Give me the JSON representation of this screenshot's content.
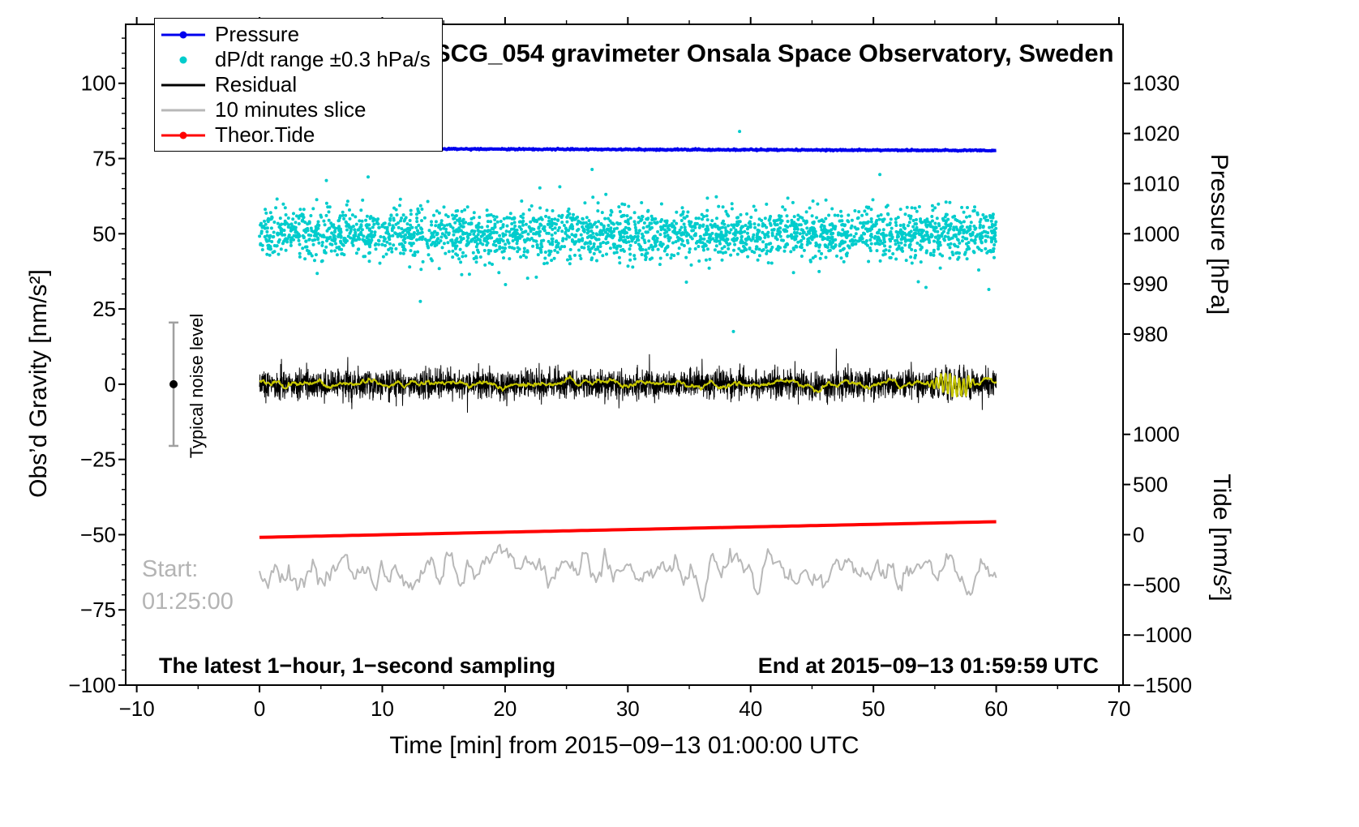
{
  "chart_data": {
    "type": "line+scatter",
    "title": "SCG_054 gravimeter Onsala Space Observatory, Sweden",
    "xlabel": "Time [min] from 2015−09−13 01:00:00 UTC",
    "ylabel_left": "Obs’d Gravity [nm/s²]",
    "ylabel_pressure": "Pressure [hPa]",
    "ylabel_tide": "Tide [nm/s²]",
    "x_range": [
      -10,
      70
    ],
    "y_left_range": [
      -100,
      100
    ],
    "x_ticks": [
      -10,
      0,
      10,
      20,
      30,
      40,
      50,
      60,
      70
    ],
    "x_tick_labels": [
      "−10",
      "0",
      "10",
      "20",
      "30",
      "40",
      "50",
      "60",
      "70"
    ],
    "x_minor_step": 5,
    "y_left_ticks": [
      -100,
      -75,
      -50,
      -25,
      0,
      25,
      50,
      75,
      100
    ],
    "y_left_tick_labels": [
      "−100",
      "−75",
      "−50",
      "−25",
      "0",
      "25",
      "50",
      "75",
      "100"
    ],
    "y_left_minor_step": 5,
    "pressure_ticks": [
      980,
      990,
      1000,
      1010,
      1020,
      1030
    ],
    "pressure_tick_labels": [
      "980",
      "990",
      "1000",
      "1010",
      "1020",
      "1030"
    ],
    "pressure_scale": {
      "gravity_at_1030": 100,
      "gravity_per_hpa": 1.666667
    },
    "tide_ticks": [
      -1500,
      -1000,
      -500,
      0,
      500,
      1000
    ],
    "tide_tick_labels": [
      "−1500",
      "−1000",
      "−500",
      "0",
      "500",
      "1000"
    ],
    "tide_scale": {
      "gravity_at_0": -50,
      "gravity_per_unit": 0.033333
    },
    "series": [
      {
        "name": "dP/dt range ±0.3 hPa/s",
        "type": "scatter",
        "color": "#00cccc",
        "n": 2600,
        "x_start": 0,
        "x_end": 60,
        "mean": 50,
        "std": 4.2,
        "tail_frac": 0.05,
        "tail_std": 8,
        "clip_low": 13,
        "clip_high": 85,
        "dot_radius": 2,
        "extra_points": [
          [
            39.1,
            84
          ],
          [
            38.6,
            17.5
          ],
          [
            13.1,
            27.5
          ],
          [
            59.4,
            31.5
          ]
        ]
      },
      {
        "name": "Pressure",
        "type": "line",
        "color": "#0000ee",
        "width": 4,
        "n": 900,
        "x_start": 0,
        "x_end": 60,
        "hpa_start": 1017.0,
        "hpa_end": 1016.6,
        "noise": 0.12
      },
      {
        "name": "Residual",
        "type": "noisy-line",
        "color": "#000000",
        "width": 1,
        "n": 3600,
        "x_start": 0,
        "x_end": 60,
        "mean": 0,
        "std": 2.3,
        "spike_frac": 0.015,
        "spike_amp": 5,
        "burst": {
          "x_from": 54.3,
          "x_to": 58.6,
          "amp": 2.5,
          "period": 0.37
        }
      },
      {
        "name": "Residual lowpass",
        "type": "smooth-line",
        "color": "#c8c800",
        "width": 2,
        "n": 1440,
        "x_start": 0,
        "x_end": 60,
        "mean": 0,
        "std": 0.8,
        "smooth": 8,
        "burst": {
          "x_from": 54.3,
          "x_to": 58.6,
          "amp": 3.6,
          "period": 0.37
        }
      },
      {
        "name": "Theor.Tide",
        "type": "line",
        "color": "#ff0000",
        "width": 4,
        "n": 120,
        "x_start": 0,
        "x_end": 60,
        "tide_start": -27,
        "tide_end": 129,
        "noise": 0
      },
      {
        "name": "10 minutes slice",
        "type": "smooth-line",
        "color": "#b8b8b8",
        "width": 2,
        "n": 430,
        "x_start": 0,
        "x_end": 60,
        "mean": -62,
        "std": 3.1,
        "smooth": 2
      }
    ],
    "noise_marker": {
      "x": -7,
      "g_center": 0,
      "half_range": 20.5,
      "cap_half_width": 6,
      "label": "Typical noise level",
      "bar_color": "#a0a0a0",
      "dot_color": "#000000"
    },
    "legend": {
      "items": [
        {
          "label": "Pressure",
          "color": "#0000ee",
          "marker": "line-dot"
        },
        {
          "label": "dP/dt range ±0.3 hPa/s",
          "color": "#00cccc",
          "marker": "dot"
        },
        {
          "label": "Residual",
          "color": "#000000",
          "marker": "line"
        },
        {
          "label": "10 minutes slice",
          "color": "#b8b8b8",
          "marker": "line"
        },
        {
          "label": "Theor.Tide",
          "color": "#ff0000",
          "marker": "line-dot"
        }
      ]
    },
    "annotations": {
      "start_label": "Start:",
      "start_time": "01:25:00",
      "bottom_left": "The latest 1−hour, 1−second sampling",
      "bottom_right": "End at 2015−09−13 01:59:59 UTC",
      "gray": "#b4b4b4"
    }
  }
}
